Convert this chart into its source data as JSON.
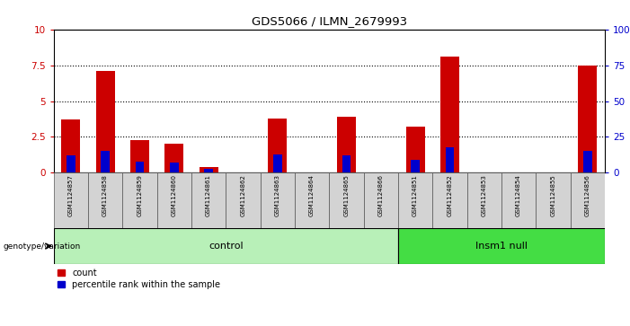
{
  "title": "GDS5066 / ILMN_2679993",
  "samples": [
    "GSM1124857",
    "GSM1124858",
    "GSM1124859",
    "GSM1124860",
    "GSM1124861",
    "GSM1124862",
    "GSM1124863",
    "GSM1124864",
    "GSM1124865",
    "GSM1124866",
    "GSM1124851",
    "GSM1124852",
    "GSM1124853",
    "GSM1124854",
    "GSM1124855",
    "GSM1124856"
  ],
  "count_values": [
    3.7,
    7.1,
    2.3,
    2.0,
    0.4,
    0.0,
    3.8,
    0.0,
    3.9,
    0.0,
    3.2,
    8.1,
    0.0,
    0.0,
    0.0,
    7.5
  ],
  "percentile_values": [
    12,
    15,
    8,
    7,
    3,
    0,
    13,
    0,
    12,
    0,
    9,
    18,
    0,
    0,
    0,
    15
  ],
  "groups": [
    "control",
    "control",
    "control",
    "control",
    "control",
    "control",
    "control",
    "control",
    "control",
    "control",
    "Insm1 null",
    "Insm1 null",
    "Insm1 null",
    "Insm1 null",
    "Insm1 null",
    "Insm1 null"
  ],
  "group_colors": {
    "control": "#b8f0b8",
    "Insm1 null": "#44dd44"
  },
  "ylim_left": [
    0,
    10
  ],
  "ylim_right": [
    0,
    100
  ],
  "yticks_left": [
    0,
    2.5,
    5,
    7.5,
    10
  ],
  "yticks_right": [
    0,
    25,
    50,
    75,
    100
  ],
  "ytick_labels_left": [
    "0",
    "2.5",
    "5",
    "7.5",
    "10"
  ],
  "ytick_labels_right": [
    "0",
    "25",
    "50",
    "75",
    "100%"
  ],
  "bar_color": "#cc0000",
  "percentile_color": "#0000cc",
  "bar_width": 0.55,
  "pct_bar_width": 0.25,
  "genotype_label": "genotype/variation",
  "legend_count": "count",
  "legend_percentile": "percentile rank within the sample"
}
